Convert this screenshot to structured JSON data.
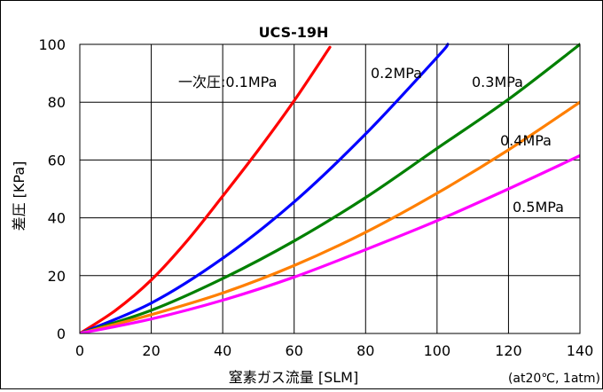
{
  "chart_data": {
    "type": "line",
    "title": "UCS-19H",
    "xlabel": "窒素ガス流量 [SLM]",
    "ylabel": "差圧 [KPa]",
    "note": "(at20℃, 1atm)",
    "xlim": [
      0,
      140
    ],
    "ylim": [
      0,
      100
    ],
    "xticks": [
      "0",
      "20",
      "40",
      "60",
      "80",
      "100",
      "120",
      "140"
    ],
    "yticks": [
      "0",
      "20",
      "40",
      "60",
      "80",
      "100"
    ],
    "grid": true,
    "series": [
      {
        "name": "一次圧:0.1MPa",
        "color": "#ff0000",
        "x": [
          0,
          10,
          20,
          30,
          40,
          50,
          60,
          70
        ],
        "y": [
          0,
          8,
          18.5,
          32,
          47.5,
          63.5,
          80.5,
          99
        ]
      },
      {
        "name": "0.2MPa",
        "color": "#0000ff",
        "x": [
          0,
          20,
          40,
          60,
          80,
          100,
          103
        ],
        "y": [
          0,
          10.5,
          26,
          45.5,
          69,
          95.5,
          100
        ]
      },
      {
        "name": "0.3MPa",
        "color": "#008000",
        "x": [
          0,
          20,
          40,
          60,
          80,
          100,
          120,
          140
        ],
        "y": [
          0,
          8,
          19,
          32,
          47,
          64,
          81,
          100
        ]
      },
      {
        "name": "0.4MPa",
        "color": "#ff7f00",
        "x": [
          0,
          20,
          40,
          60,
          80,
          100,
          120,
          140
        ],
        "y": [
          0,
          6.5,
          14,
          23.5,
          35,
          48.5,
          63.5,
          80
        ]
      },
      {
        "name": "0.5MPa",
        "color": "#ff00ff",
        "x": [
          0,
          20,
          40,
          60,
          80,
          100,
          120,
          140
        ],
        "y": [
          0,
          5,
          11.5,
          19.5,
          29,
          39,
          50,
          61.5
        ]
      }
    ]
  }
}
